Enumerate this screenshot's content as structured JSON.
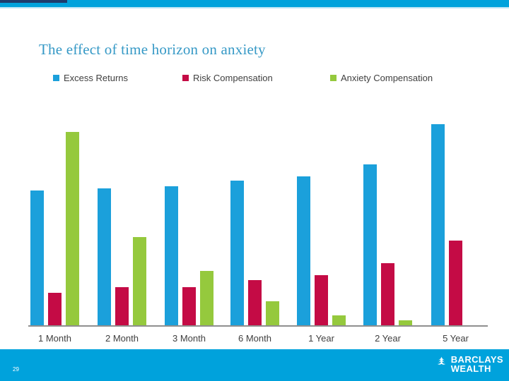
{
  "slide": {
    "title": "The effect of time horizon on anxiety",
    "page_number": "29",
    "logo": {
      "line1": "BARCLAYS",
      "line2": "WEALTH"
    }
  },
  "colors": {
    "top_bar": "#00A2DC",
    "bottom_bar": "#00A2DC",
    "corner_accent": "#1D3C6D",
    "title_text": "#3699C6",
    "axis_line": "#8F8F8F",
    "label_text": "#404040",
    "logo_text": "#FFFFFF",
    "series_blue": "#1BA0DB",
    "series_red": "#C40B45",
    "series_green": "#95C93D"
  },
  "chart_data": {
    "type": "bar",
    "title": "The effect of time horizon on anxiety",
    "xlabel": "",
    "ylabel": "",
    "categories": [
      "1 Month",
      "2 Month",
      "3 Month",
      "6 Month",
      "1 Year",
      "2 Year",
      "5 Year"
    ],
    "series": [
      {
        "name": "Excess Returns",
        "color_key": "series_blue",
        "values": [
          67,
          68,
          69,
          72,
          74,
          80,
          100
        ]
      },
      {
        "name": "Risk Compensation",
        "color_key": "series_red",
        "values": [
          16,
          19,
          19,
          22.5,
          25,
          31,
          42
        ]
      },
      {
        "name": "Anxiety Compensation",
        "color_key": "series_green",
        "values": [
          96,
          44,
          27,
          12,
          5,
          2.5,
          0
        ]
      }
    ],
    "ylim": [
      0,
      100
    ],
    "grid": false,
    "y_axis_visible": false,
    "legend_position": "top"
  }
}
